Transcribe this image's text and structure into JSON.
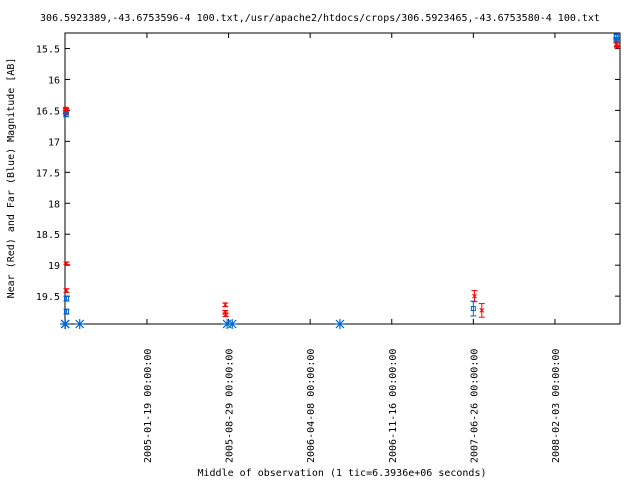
{
  "chart_data": {
    "type": "scatter",
    "title": "306.5923389,-43.6753596-4 100.txt,/usr/apache2/htdocs/crops/306.5923465,-43.6753580-4 100.txt",
    "xlabel": "Middle of observation (1 tic=6.3936e+06 seconds)",
    "ylabel": "Near (Red) and Far (Blue) Magnitude [AB]",
    "x_ticks": [
      "2005-01-19 00:00:00",
      "2005-08-29 00:00:00",
      "2006-04-08 00:00:00",
      "2006-11-16 00:00:00",
      "2007-06-26 00:00:00",
      "2008-02-03 00:00:00"
    ],
    "y_ticks": [
      "15.5",
      "16",
      "16.5",
      "17",
      "17.5",
      "18",
      "18.5",
      "19",
      "19.5"
    ],
    "xlim": [
      "2004-06-10",
      "2008-07-29"
    ],
    "ylim": [
      19.95,
      15.25
    ],
    "y_reversed": true,
    "series": [
      {
        "name": "Near (Red)",
        "color": "#ff0000",
        "points": [
          {
            "x": "2004-06-12",
            "y": 16.48,
            "err": 0.03
          },
          {
            "x": "2004-06-12",
            "y": 16.52,
            "err": 0.03
          },
          {
            "x": "2004-06-13",
            "y": 16.5,
            "err": 0.03
          },
          {
            "x": "2004-06-13",
            "y": 16.54,
            "err": 0.03
          },
          {
            "x": "2004-06-14",
            "y": 18.97,
            "err": 0.02
          },
          {
            "x": "2004-06-14",
            "y": 19.41,
            "err": 0.03
          },
          {
            "x": "2005-08-20",
            "y": 19.64,
            "err": 0.03
          },
          {
            "x": "2005-08-20",
            "y": 19.76,
            "err": 0.03
          },
          {
            "x": "2005-08-21",
            "y": 19.8,
            "err": 0.03
          },
          {
            "x": "2007-06-29",
            "y": 19.5,
            "err": 0.09
          },
          {
            "x": "2007-07-19",
            "y": 19.73,
            "err": 0.11
          },
          {
            "x": "2008-07-19",
            "y": 15.38,
            "err": 0.03
          },
          {
            "x": "2008-07-20",
            "y": 15.44,
            "err": 0.03
          },
          {
            "x": "2008-07-21",
            "y": 15.47,
            "err": 0.02
          }
        ]
      },
      {
        "name": "Far (Blue)",
        "color": "#0066cc",
        "points": [
          {
            "x": "2004-06-13",
            "y": 16.57,
            "err": 0.03
          },
          {
            "x": "2004-06-14",
            "y": 19.54,
            "err": 0.04
          },
          {
            "x": "2004-06-14",
            "y": 19.75,
            "err": 0.04
          },
          {
            "x": "2007-06-26",
            "y": 19.7,
            "err": 0.12
          },
          {
            "x": "2008-07-19",
            "y": 15.3,
            "err": 0.02
          },
          {
            "x": "2008-07-19",
            "y": 15.36,
            "err": 0.02
          }
        ]
      },
      {
        "name": "Upper limits (Far)",
        "color": "#0066cc",
        "marker": "asterisk",
        "points": [
          {
            "x": "2004-06-10",
            "y": 19.95
          },
          {
            "x": "2004-06-11",
            "y": 19.95
          },
          {
            "x": "2004-07-20",
            "y": 19.95
          },
          {
            "x": "2005-08-25",
            "y": 19.95
          },
          {
            "x": "2005-09-08",
            "y": 19.95
          },
          {
            "x": "2006-06-28",
            "y": 19.95
          }
        ]
      }
    ],
    "grid": false,
    "legend": "none"
  }
}
